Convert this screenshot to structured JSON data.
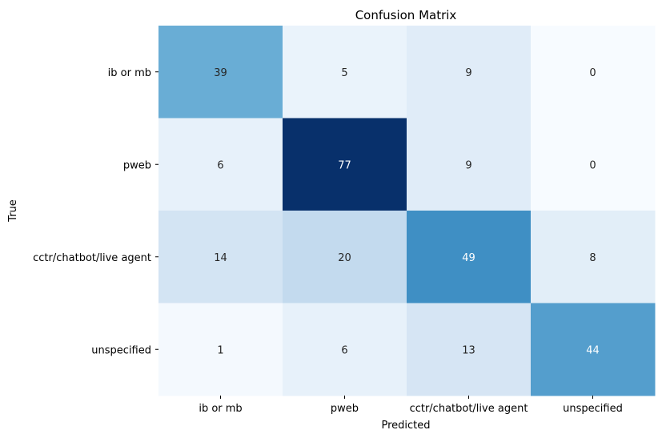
{
  "chart_data": {
    "type": "heatmap",
    "title": "Confusion Matrix",
    "xlabel": "Predicted",
    "ylabel": "True",
    "x_categories": [
      "ib or mb",
      "pweb",
      "cctr/chatbot/live agent",
      "unspecified"
    ],
    "y_categories": [
      "ib or mb",
      "pweb",
      "cctr/chatbot/live agent",
      "unspecified"
    ],
    "values": [
      [
        39,
        5,
        9,
        0
      ],
      [
        6,
        77,
        9,
        0
      ],
      [
        14,
        20,
        49,
        8
      ],
      [
        1,
        6,
        13,
        44
      ]
    ],
    "colormap": "Blues",
    "value_range": [
      0,
      77
    ],
    "colorbar": false,
    "grid": false
  }
}
